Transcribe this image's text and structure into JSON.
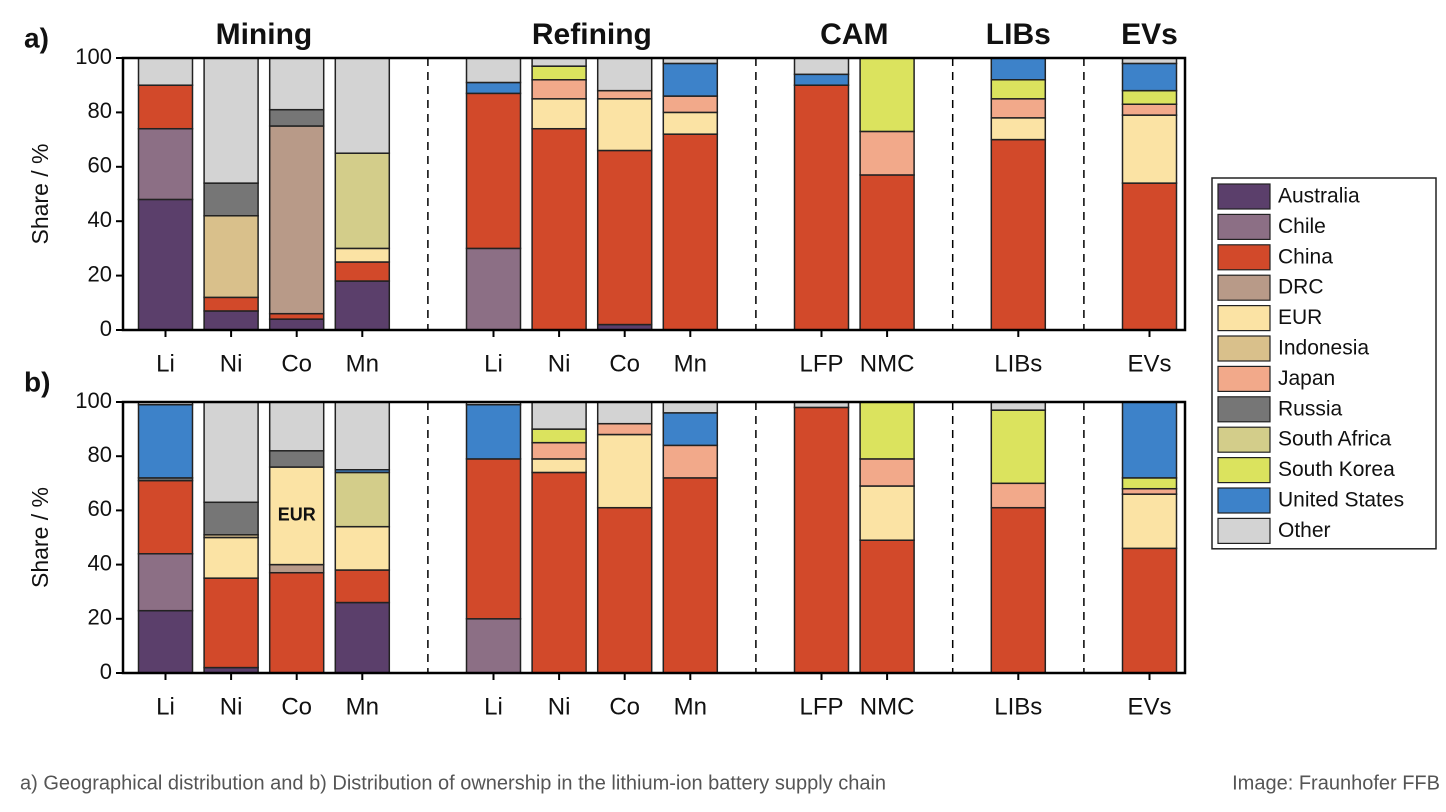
{
  "chart_data": {
    "type": "bar",
    "stacked": true,
    "ylabel": "Share / %",
    "ylim": [
      0,
      100
    ],
    "yticks": [
      0,
      20,
      40,
      60,
      80,
      100
    ],
    "groups": [
      {
        "name": "Mining",
        "categories": [
          "Li",
          "Ni",
          "Co",
          "Mn"
        ]
      },
      {
        "name": "Refining",
        "categories": [
          "Li",
          "Ni",
          "Co",
          "Mn"
        ]
      },
      {
        "name": "CAM",
        "categories": [
          "LFP",
          "NMC"
        ]
      },
      {
        "name": "LIBs",
        "categories": [
          "LIBs"
        ]
      },
      {
        "name": "EVs",
        "categories": [
          "EVs"
        ]
      }
    ],
    "series": [
      {
        "name": "Australia",
        "color": "#5b3f6b"
      },
      {
        "name": "Chile",
        "color": "#8c6f85"
      },
      {
        "name": "China",
        "color": "#d2492a"
      },
      {
        "name": "DRC",
        "color": "#b89a88"
      },
      {
        "name": "EUR",
        "color": "#fbe3a4"
      },
      {
        "name": "Indonesia",
        "color": "#d9c08b"
      },
      {
        "name": "Japan",
        "color": "#f2a98a"
      },
      {
        "name": "Russia",
        "color": "#767676"
      },
      {
        "name": "South Africa",
        "color": "#d3cd8a"
      },
      {
        "name": "South Korea",
        "color": "#dbe35e"
      },
      {
        "name": "United States",
        "color": "#3d82c9"
      },
      {
        "name": "Other",
        "color": "#d3d3d3"
      }
    ],
    "panels": [
      {
        "label": "a)",
        "data": [
          [
            48,
            7,
            4,
            18,
            null,
            null,
            2,
            null,
            null,
            null,
            null,
            null
          ],
          [
            26,
            null,
            null,
            null,
            30,
            null,
            null,
            null,
            null,
            null,
            null,
            null
          ],
          [
            16,
            5,
            2,
            7,
            57,
            74,
            64,
            72,
            90,
            57,
            70,
            54
          ],
          [
            null,
            null,
            69,
            null,
            null,
            null,
            null,
            null,
            null,
            null,
            null,
            null
          ],
          [
            null,
            null,
            null,
            5,
            null,
            11,
            19,
            8,
            null,
            null,
            8,
            25
          ],
          [
            null,
            30,
            null,
            null,
            null,
            null,
            null,
            null,
            null,
            null,
            null,
            null
          ],
          [
            null,
            null,
            null,
            null,
            null,
            7,
            3,
            6,
            null,
            16,
            7,
            4
          ],
          [
            null,
            12,
            6,
            null,
            null,
            null,
            null,
            null,
            null,
            null,
            null,
            null
          ],
          [
            null,
            null,
            null,
            35,
            null,
            null,
            null,
            null,
            null,
            null,
            null,
            null
          ],
          [
            null,
            null,
            null,
            null,
            null,
            5,
            null,
            null,
            null,
            27,
            7,
            5
          ],
          [
            null,
            null,
            null,
            null,
            4,
            null,
            null,
            12,
            4,
            null,
            8,
            10
          ],
          [
            10,
            46,
            19,
            35,
            9,
            3,
            12,
            2,
            6,
            null,
            null,
            2
          ]
        ]
      },
      {
        "label": "b)",
        "annotation": "EUR",
        "data": [
          [
            23,
            2,
            null,
            26,
            null,
            null,
            null,
            null,
            null,
            null,
            null,
            null
          ],
          [
            21,
            null,
            null,
            null,
            20,
            null,
            null,
            null,
            null,
            null,
            null,
            null
          ],
          [
            27,
            33,
            37,
            12,
            59,
            74,
            61,
            72,
            98,
            49,
            61,
            46
          ],
          [
            null,
            null,
            3,
            null,
            null,
            null,
            null,
            null,
            null,
            null,
            null,
            null
          ],
          [
            null,
            15,
            36,
            16,
            null,
            5,
            27,
            null,
            null,
            20,
            null,
            20
          ],
          [
            null,
            1,
            null,
            null,
            null,
            null,
            null,
            null,
            null,
            null,
            null,
            null
          ],
          [
            null,
            null,
            null,
            null,
            null,
            6,
            4,
            12,
            null,
            10,
            9,
            2
          ],
          [
            1,
            12,
            6,
            null,
            null,
            null,
            null,
            null,
            null,
            null,
            null,
            null
          ],
          [
            null,
            null,
            null,
            20,
            null,
            null,
            null,
            null,
            null,
            null,
            null,
            null
          ],
          [
            null,
            null,
            null,
            null,
            null,
            5,
            null,
            null,
            null,
            21,
            27,
            4
          ],
          [
            27,
            null,
            null,
            1,
            20,
            null,
            null,
            12,
            null,
            null,
            null,
            28
          ],
          [
            1,
            37,
            18,
            25,
            1,
            10,
            8,
            4,
            2,
            null,
            3,
            null
          ]
        ]
      }
    ]
  },
  "caption": "a) Geographical distribution and b) Distribution of ownership in the lithium-ion battery supply chain",
  "credit": "Image: Fraunhofer FFB"
}
